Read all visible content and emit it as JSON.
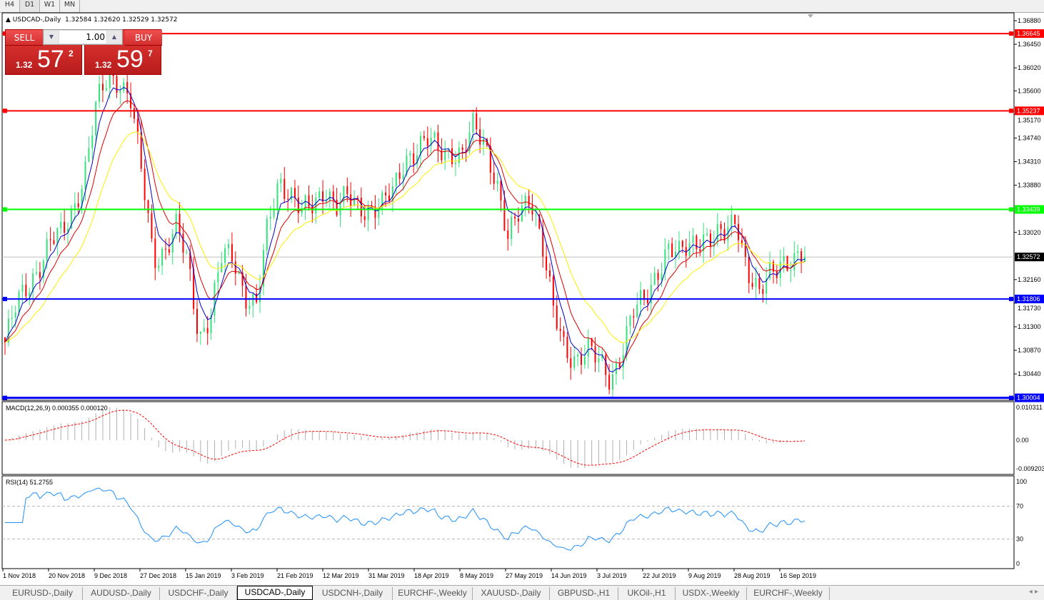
{
  "timeframes": [
    "H4",
    "D1",
    "W1",
    "MN"
  ],
  "active_timeframe": "D1",
  "chart": {
    "symbol_label": "USDCAD-,Daily",
    "ohlc": "1.32584 1.32620 1.32529 1.32572",
    "current_price": "1.32572"
  },
  "trade_panel": {
    "sell_label": "SELL",
    "buy_label": "BUY",
    "lot": "1.00",
    "sell_prefix": "1.32",
    "sell_big": "57",
    "sell_sup": "2",
    "buy_prefix": "1.32",
    "buy_big": "59",
    "buy_sup": "7"
  },
  "price_axis": [
    "1.36880",
    "1.36450",
    "1.36020",
    "1.35600",
    "1.35170",
    "1.34740",
    "1.34310",
    "1.33880",
    "1.33020",
    "1.32160",
    "1.31730",
    "1.31300",
    "1.30870",
    "1.30440"
  ],
  "horizontal_lines": [
    {
      "price": "1.36645",
      "color": "#ff0000"
    },
    {
      "price": "1.35237",
      "color": "#ff0000"
    },
    {
      "price": "1.33439",
      "color": "#00ff00"
    },
    {
      "price": "1.31806",
      "color": "#0000ff"
    },
    {
      "price": "1.30004",
      "color": "#0000ff"
    }
  ],
  "colors": {
    "bull": "#33e27a",
    "bear": "#ff0000",
    "ma_fast": "#0000cc",
    "ma_mid": "#e00000",
    "ma_slow": "#ffee00",
    "rsi": "#1e90ff",
    "macd_signal": "#ff0000",
    "macd_hist": "#b0b0b0"
  },
  "close_series": [
    1.3101,
    1.3166,
    1.3205,
    1.3244,
    1.3284,
    1.3297,
    1.3349,
    1.3414,
    1.3531,
    1.3583,
    1.3583,
    1.3544,
    1.3401,
    1.3257,
    1.3271,
    1.331,
    1.3244,
    1.3114,
    1.3153,
    1.3257,
    1.3257,
    1.3192,
    1.3166,
    1.331,
    1.3401,
    1.3375,
    1.3336,
    1.3349,
    1.3388,
    1.3349,
    1.3362,
    1.3349,
    1.3349,
    1.3349,
    1.3375,
    1.344,
    1.3453,
    1.3466,
    1.3453,
    1.3453,
    1.344,
    1.3492,
    1.3466,
    1.3401,
    1.3284,
    1.3336,
    1.3375,
    1.3284,
    1.3153,
    1.3088,
    1.3075,
    1.3088,
    1.3062,
    1.3036,
    1.3088,
    1.3153,
    1.3179,
    1.3231,
    1.3271,
    1.3257,
    1.3284,
    1.3297,
    1.3284,
    1.3297,
    1.3336,
    1.3231,
    1.3179,
    1.3231,
    1.3257,
    1.3244,
    1.32572
  ],
  "macd": {
    "label": "MACD(12,26,9) 0.000355 0.000120",
    "axis": [
      "0.010311",
      "0.00",
      "-0.009203"
    ]
  },
  "rsi": {
    "label": "RSI(14) 51.2755",
    "axis": [
      "100",
      "70",
      "30",
      "0"
    ],
    "levels": [
      70,
      30
    ]
  },
  "dates": [
    "1 Nov 2018",
    "20 Nov 2018",
    "9 Dec 2018",
    "27 Dec 2018",
    "15 Jan 2019",
    "3 Feb 2019",
    "21 Feb 2019",
    "12 Mar 2019",
    "31 Mar 2019",
    "18 Apr 2019",
    "8 May 2019",
    "27 May 2019",
    "14 Jun 2019",
    "3 Jul 2019",
    "22 Jul 2019",
    "9 Aug 2019",
    "28 Aug 2019",
    "16 Sep 2019"
  ],
  "chart_tabs": [
    "EURUSD-,Daily",
    "AUDUSD-,Daily",
    "USDCHF-,Daily",
    "USDCAD-,Daily",
    "USDCNH-,Daily",
    "EURCHF-,Weekly",
    "XAUUSD-,Daily",
    "GBPUSD-,H1",
    "UKOil-,H1",
    "USDX-,Weekly",
    "EURCHF-,Weekly"
  ],
  "active_tab": "USDCAD-,Daily"
}
